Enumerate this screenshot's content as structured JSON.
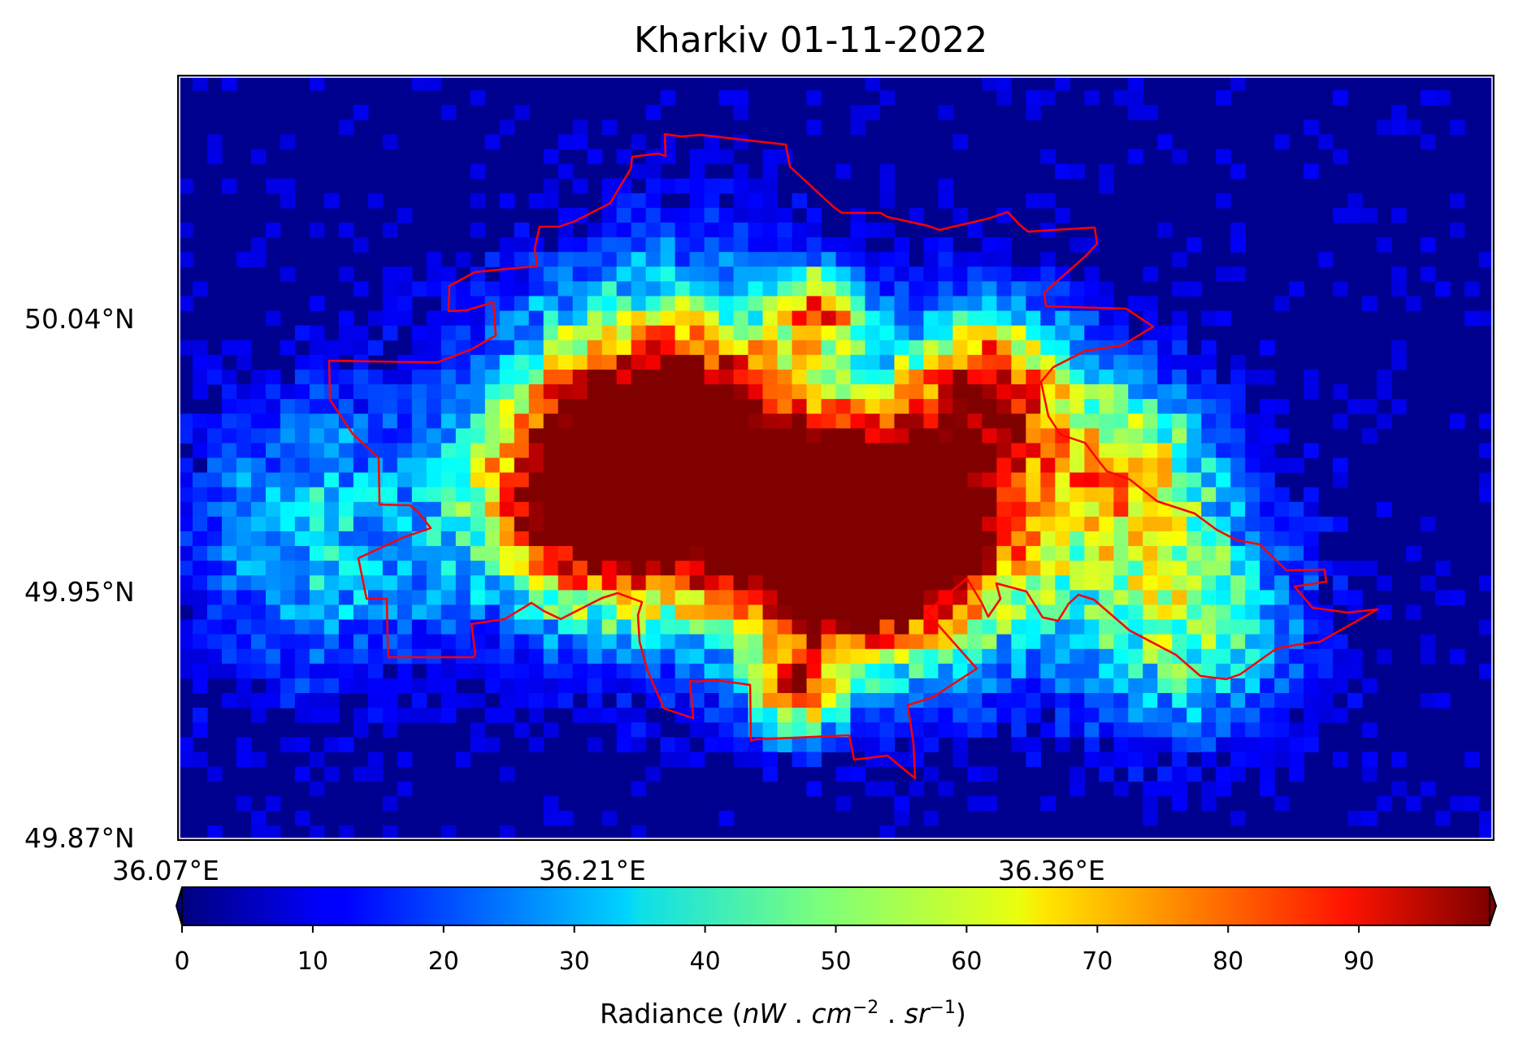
{
  "title": "Kharkiv 01-11-2022",
  "y_ticks": [
    "50.04°N",
    "49.95°N",
    "49.87°N"
  ],
  "x_ticks": [
    "36.07°E",
    "36.21°E",
    "36.36°E"
  ],
  "colorbar": {
    "ticks": [
      "0",
      "10",
      "20",
      "30",
      "40",
      "50",
      "60",
      "70",
      "80",
      "90"
    ],
    "min": 0,
    "max": 100,
    "colormap": "jet",
    "extend": "both",
    "label_prefix": "Radiance (",
    "label_unit_nw": "nW",
    "label_dot1": " . ",
    "label_unit_cm": "cm",
    "label_exp_cm": "−2",
    "label_dot2": " . ",
    "label_unit_sr": "sr",
    "label_exp_sr": "−1",
    "label_suffix": ")"
  },
  "colors": {
    "boundary": "#ff0000",
    "background_low": "#00008f",
    "high": "#800000"
  }
}
